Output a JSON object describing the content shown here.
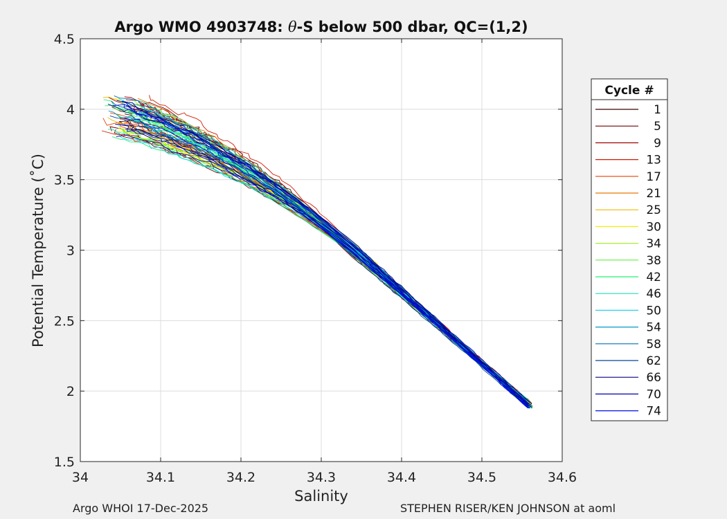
{
  "chart_data": {
    "type": "line",
    "title": "Argo WMO 4903748: θ-S below 500 dbar,  QC=(1,2)",
    "title_prefix": "Argo WMO 4903748: ",
    "title_theta": "θ",
    "title_suffix": "-S below 500 dbar,  QC=(1,2)",
    "xlabel": "Salinity",
    "ylabel": "Potential Temperature (˚C)",
    "xlim": [
      34.0,
      34.6
    ],
    "ylim": [
      1.5,
      4.5
    ],
    "xticks": [
      34.0,
      34.1,
      34.2,
      34.3,
      34.4,
      34.5,
      34.6
    ],
    "xtick_labels": [
      "34",
      "34.1",
      "34.2",
      "34.3",
      "34.4",
      "34.5",
      "34.6"
    ],
    "yticks": [
      1.5,
      2.0,
      2.5,
      3.0,
      3.5,
      4.0,
      4.5
    ],
    "ytick_labels": [
      "1.5",
      "2",
      "2.5",
      "3",
      "3.5",
      "4",
      "4.5"
    ],
    "grid": true,
    "legend_title": "Cycle #",
    "legend_position": "right-outside",
    "legend": [
      {
        "label": "1",
        "color": "#3a0000"
      },
      {
        "label": "5",
        "color": "#6e0000"
      },
      {
        "label": "9",
        "color": "#a00000"
      },
      {
        "label": "13",
        "color": "#d01a00"
      },
      {
        "label": "17",
        "color": "#e84000"
      },
      {
        "label": "21",
        "color": "#e87800"
      },
      {
        "label": "25",
        "color": "#f0b800"
      },
      {
        "label": "30",
        "color": "#f0f000"
      },
      {
        "label": "34",
        "color": "#a8f030"
      },
      {
        "label": "38",
        "color": "#60f040"
      },
      {
        "label": "42",
        "color": "#20f070"
      },
      {
        "label": "46",
        "color": "#20e0b0"
      },
      {
        "label": "50",
        "color": "#20d0f0"
      },
      {
        "label": "54",
        "color": "#0098c8"
      },
      {
        "label": "58",
        "color": "#0070b0"
      },
      {
        "label": "62",
        "color": "#004898"
      },
      {
        "label": "66",
        "color": "#000080"
      },
      {
        "label": "70",
        "color": "#0000b0"
      },
      {
        "label": "74",
        "color": "#0010e0"
      }
    ],
    "series_profile": {
      "description": "74 profiles collapsing to a tight band at depth",
      "cycles": 74,
      "deep_end": {
        "salinity": 34.56,
        "theta": 1.9
      },
      "knee": {
        "salinity": 34.34,
        "theta": 3.0
      },
      "shallow_start_salinity_range": [
        34.03,
        34.08
      ],
      "shallow_start_theta_range": [
        3.8,
        4.1
      ]
    }
  },
  "footer": {
    "left": "Argo WHOI 17-Dec-2025",
    "right": "STEPHEN RISER/KEN JOHNSON at aoml"
  },
  "colors": {
    "background": "#f0f0f0",
    "axes_bg": "#ffffff",
    "grid": "#dcdcdc",
    "axis": "#262626"
  }
}
